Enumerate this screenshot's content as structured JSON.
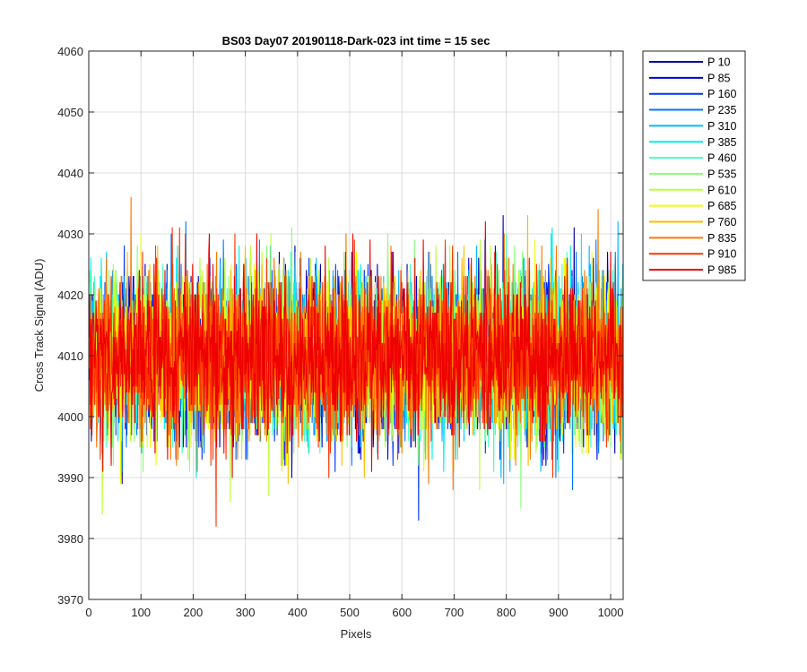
{
  "chart_data": {
    "type": "line",
    "title": "BS03 Day07 20190118-Dark-023 int time = 15 sec",
    "xlabel": "Pixels",
    "ylabel": "Cross Track Signal (ADU)",
    "xlim": [
      0,
      1024
    ],
    "ylim": [
      3970,
      4060
    ],
    "xticks": [
      "0",
      "100",
      "200",
      "300",
      "400",
      "500",
      "600",
      "700",
      "800",
      "900",
      "1000"
    ],
    "yticks": [
      "3970",
      "3980",
      "3990",
      "4000",
      "4010",
      "4020",
      "4030",
      "4040",
      "4050",
      "4060"
    ],
    "grid": true,
    "legend_position": "outside-top-right",
    "series": [
      {
        "name": "P 10",
        "color": "#0000aa",
        "mean": 4010,
        "spread": 6.5
      },
      {
        "name": "P 85",
        "color": "#0000dd",
        "mean": 4010,
        "spread": 6.5
      },
      {
        "name": "P 160",
        "color": "#0033ff",
        "mean": 4010,
        "spread": 6.5
      },
      {
        "name": "P 235",
        "color": "#0077ff",
        "mean": 4010,
        "spread": 6.5
      },
      {
        "name": "P 310",
        "color": "#00bbff",
        "mean": 4010,
        "spread": 6.5
      },
      {
        "name": "P 385",
        "color": "#00eeee",
        "mean": 4010,
        "spread": 6.5
      },
      {
        "name": "P 460",
        "color": "#44ffbb",
        "mean": 4010,
        "spread": 6.5
      },
      {
        "name": "P 535",
        "color": "#88ff77",
        "mean": 4010,
        "spread": 6.5
      },
      {
        "name": "P 610",
        "color": "#bbff33",
        "mean": 4010,
        "spread": 6.5
      },
      {
        "name": "P 685",
        "color": "#eeff00",
        "mean": 4010,
        "spread": 6.5
      },
      {
        "name": "P 760",
        "color": "#ffbb00",
        "mean": 4010,
        "spread": 6.5
      },
      {
        "name": "P 835",
        "color": "#ff7700",
        "mean": 4010,
        "spread": 6.5
      },
      {
        "name": "P 910",
        "color": "#ff3300",
        "mean": 4010,
        "spread": 6.5
      },
      {
        "name": "P 985",
        "color": "#ee0000",
        "mean": 4010,
        "spread": 6.5
      }
    ]
  }
}
